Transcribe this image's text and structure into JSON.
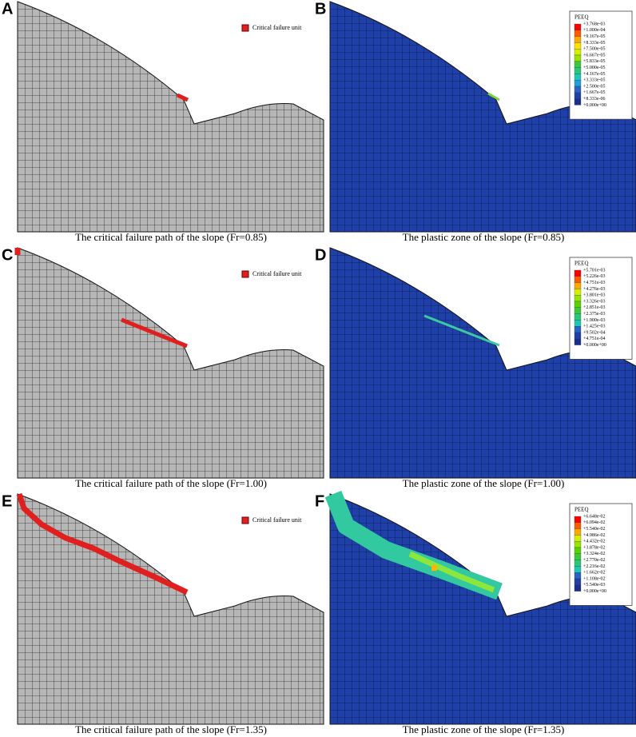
{
  "panels": [
    {
      "letter": "A",
      "caption": "The critical failure path of the slope (Fr=0.85)",
      "legend": {
        "label": "Critical failure unit"
      }
    },
    {
      "letter": "B",
      "caption": "The plastic zone of the slope (Fr=0.85)",
      "legend": {
        "title": "PEEQ",
        "labels": [
          "+3.768e-03",
          "+1.000e-04",
          "+9.167e-05",
          "+8.333e-05",
          "+7.500e-05",
          "+6.667e-05",
          "+5.833e-05",
          "+5.000e-05",
          "+4.167e-05",
          "+3.333e-05",
          "+2.500e-05",
          "+1.667e-05",
          "+8.333e-06",
          "+0.000e+00"
        ]
      }
    },
    {
      "letter": "C",
      "caption": "The critical failure path of the slope (Fr=1.00)",
      "legend": {
        "label": "Critical failure unit"
      }
    },
    {
      "letter": "D",
      "caption": "The plastic zone of the slope (Fr=1.00)",
      "legend": {
        "title": "PEEQ",
        "labels": [
          "+5.701e-03",
          "+5.226e-03",
          "+4.751e-03",
          "+4.276e-03",
          "+3.801e-03",
          "+3.326e-03",
          "+2.851e-03",
          "+2.375e-03",
          "+1.900e-03",
          "+1.425e-03",
          "+9.502e-04",
          "+4.751e-04",
          "+0.000e+00"
        ]
      }
    },
    {
      "letter": "E",
      "caption": "The critical failure path of the slope (Fr=1.35)",
      "legend": {
        "label": "Critical failure unit"
      }
    },
    {
      "letter": "F",
      "caption": "The plastic zone of the slope (Fr=1.35)",
      "legend": {
        "title": "PEEQ",
        "labels": [
          "+6.648e-02",
          "+6.094e-02",
          "+5.540e-02",
          "+4.986e-02",
          "+4.432e-02",
          "+3.878e-02",
          "+3.324e-02",
          "+2.770e-02",
          "+2.216e-02",
          "+1.662e-02",
          "+1.108e-02",
          "+5.540e-03",
          "+0.000e+00"
        ]
      }
    }
  ]
}
